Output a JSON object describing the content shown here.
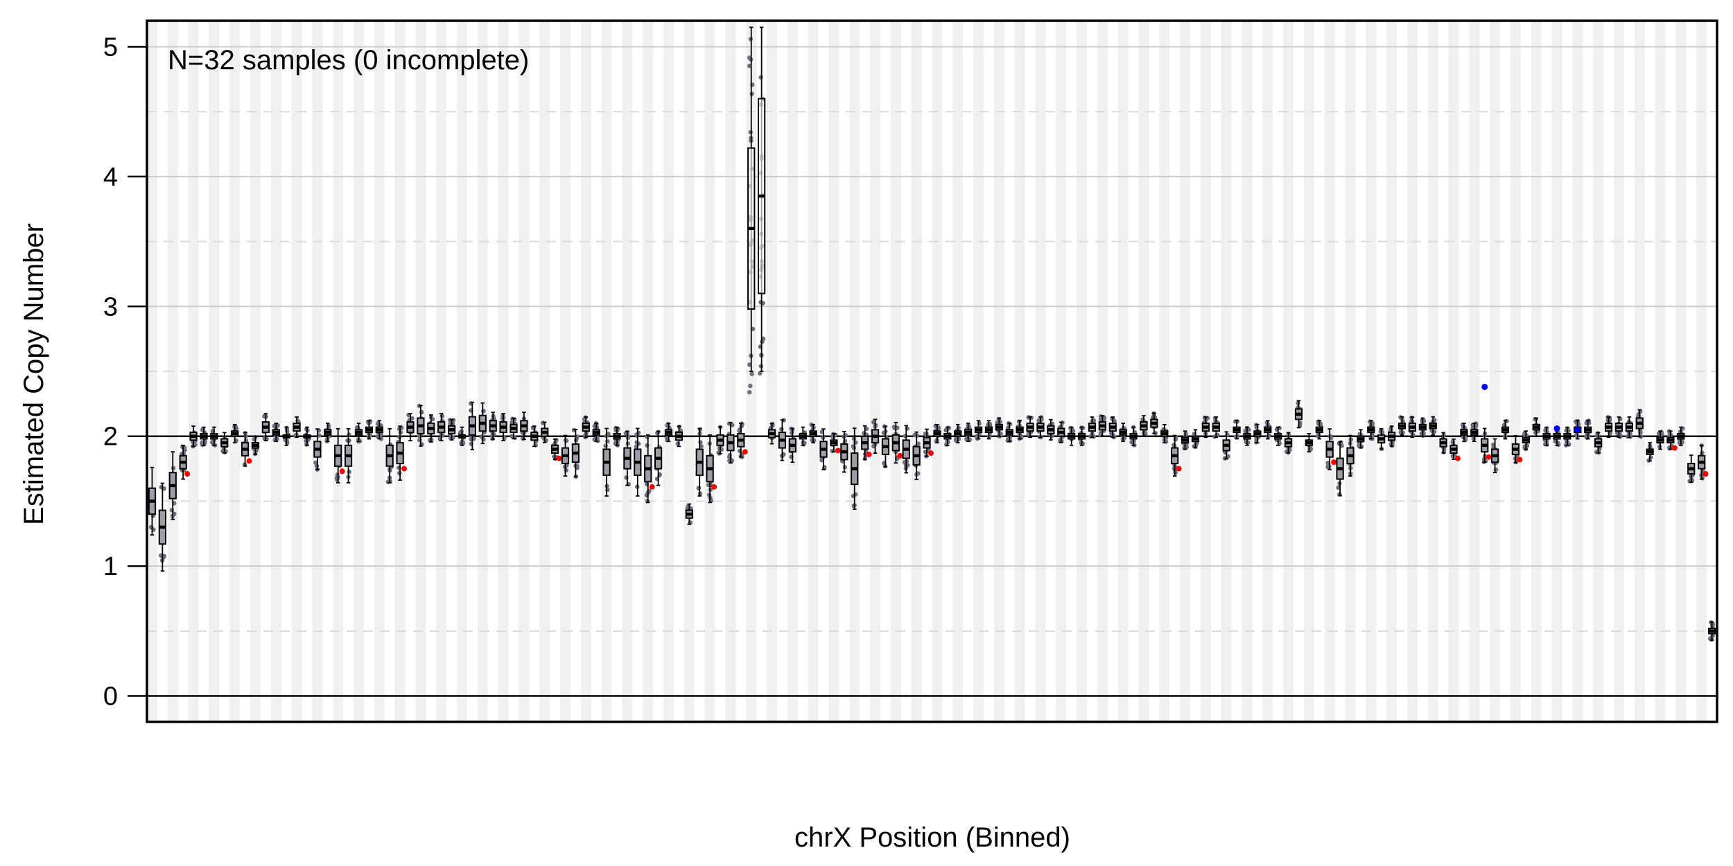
{
  "chart_data": {
    "type": "box",
    "annotation": "N=32 samples (0 incomplete)",
    "xlabel": "chrX Position (Binned)",
    "ylabel": "Estimated Copy Number",
    "ylim": [
      -0.2,
      5.2
    ],
    "yticks": [
      0,
      1,
      2,
      3,
      4,
      5
    ],
    "reference_line": 2,
    "gridlines": {
      "major": [
        1,
        2,
        3,
        4,
        5
      ],
      "minor_dashed": [
        0.5,
        1.5,
        2.5,
        3.5,
        4.5
      ]
    },
    "n_bins": 152,
    "medians": [
      1.5,
      1.3,
      1.62,
      1.8,
      2.0,
      2.0,
      2.0,
      1.95,
      2.02,
      1.9,
      1.93,
      2.07,
      2.03,
      2.0,
      2.07,
      2.0,
      1.9,
      2.03,
      1.85,
      1.85,
      2.03,
      2.05,
      2.05,
      1.85,
      1.87,
      2.07,
      2.08,
      2.06,
      2.07,
      2.05,
      2.0,
      2.08,
      2.1,
      2.08,
      2.07,
      2.06,
      2.08,
      2.0,
      2.03,
      1.9,
      1.85,
      1.87,
      2.07,
      2.03,
      1.8,
      2.0,
      1.83,
      1.8,
      1.75,
      1.83,
      2.03,
      2.0,
      1.4,
      1.8,
      1.75,
      1.97,
      1.95,
      1.97,
      3.6,
      3.85,
      2.02,
      1.97,
      1.93,
      2.0,
      2.02,
      1.9,
      1.95,
      1.88,
      1.75,
      1.95,
      2.0,
      1.92,
      1.95,
      1.9,
      1.85,
      1.95,
      2.02,
      2.0,
      2.02,
      2.03,
      2.05,
      2.05,
      2.07,
      2.03,
      2.05,
      2.07,
      2.07,
      2.05,
      2.03,
      2.0,
      2.0,
      2.07,
      2.08,
      2.07,
      2.03,
      2.0,
      2.08,
      2.1,
      2.02,
      1.85,
      1.97,
      1.98,
      2.07,
      2.07,
      1.93,
      2.05,
      2.0,
      2.02,
      2.05,
      2.0,
      1.95,
      2.17,
      1.95,
      2.05,
      1.9,
      1.75,
      1.85,
      1.98,
      2.05,
      1.98,
      2.0,
      2.08,
      2.07,
      2.07,
      2.08,
      1.95,
      1.9,
      2.03,
      2.03,
      1.93,
      1.85,
      2.05,
      1.9,
      1.97,
      2.07,
      2.0,
      2.0,
      2.0,
      2.05,
      2.05,
      1.95,
      2.07,
      2.07,
      2.07,
      2.1,
      1.88,
      1.97,
      1.97,
      2.0,
      1.75,
      1.8,
      0.5
    ],
    "iqr_half": [
      0.1,
      0.13,
      0.1,
      0.05,
      0.03,
      0.02,
      0.02,
      0.03,
      0.02,
      0.05,
      0.02,
      0.04,
      0.02,
      0.01,
      0.03,
      0.01,
      0.06,
      0.02,
      0.08,
      0.08,
      0.02,
      0.02,
      0.02,
      0.08,
      0.08,
      0.04,
      0.06,
      0.04,
      0.04,
      0.03,
      0.01,
      0.07,
      0.06,
      0.04,
      0.04,
      0.03,
      0.04,
      0.03,
      0.03,
      0.03,
      0.06,
      0.07,
      0.03,
      0.02,
      0.1,
      0.02,
      0.08,
      0.1,
      0.1,
      0.08,
      0.02,
      0.03,
      0.03,
      0.1,
      0.1,
      0.04,
      0.06,
      0.05,
      0.62,
      0.75,
      0.03,
      0.06,
      0.05,
      0.02,
      0.02,
      0.06,
      0.02,
      0.06,
      0.12,
      0.05,
      0.05,
      0.06,
      0.06,
      0.07,
      0.07,
      0.04,
      0.02,
      0.02,
      0.02,
      0.02,
      0.02,
      0.02,
      0.02,
      0.02,
      0.02,
      0.03,
      0.03,
      0.03,
      0.03,
      0.02,
      0.02,
      0.03,
      0.03,
      0.03,
      0.02,
      0.02,
      0.03,
      0.03,
      0.02,
      0.06,
      0.02,
      0.02,
      0.03,
      0.03,
      0.04,
      0.02,
      0.02,
      0.02,
      0.02,
      0.02,
      0.03,
      0.04,
      0.02,
      0.02,
      0.06,
      0.08,
      0.06,
      0.02,
      0.02,
      0.03,
      0.03,
      0.02,
      0.03,
      0.02,
      0.02,
      0.03,
      0.03,
      0.02,
      0.02,
      0.05,
      0.05,
      0.02,
      0.04,
      0.02,
      0.02,
      0.02,
      0.02,
      0.02,
      0.02,
      0.02,
      0.03,
      0.03,
      0.03,
      0.03,
      0.04,
      0.02,
      0.02,
      0.02,
      0.02,
      0.04,
      0.05,
      0.02
    ],
    "colors": {
      "box_fill": "#9e9ea8",
      "box_open": "#ffffff",
      "points": "#6e6e7e",
      "outlier_low": "#ff0000",
      "outlier_high": "#0000ff",
      "stripe": "#f0f0f0",
      "grid": "#cccccc"
    }
  }
}
